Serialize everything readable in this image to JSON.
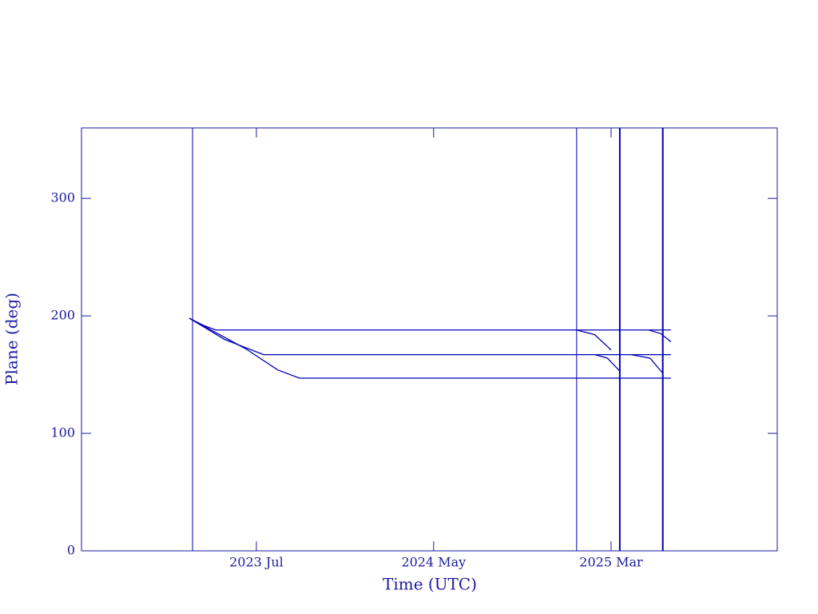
{
  "chart_data": {
    "type": "line",
    "xlabel": "Time (UTC)",
    "ylabel": "Plane (deg)",
    "xlim": [
      2022.678,
      2025.948
    ],
    "xticks": [
      {
        "value": 2023.5,
        "label": "2023 Jul"
      },
      {
        "value": 2024.333,
        "label": "2024 May"
      },
      {
        "value": 2025.167,
        "label": "2025 Mar"
      }
    ],
    "ylim": [
      0,
      360
    ],
    "yticks": [
      0,
      100,
      200,
      300
    ],
    "vlines": [
      2023.2,
      2025.005,
      2025.208,
      2025.41
    ],
    "color": "#0000b4",
    "series": [
      {
        "color": "#0000b4",
        "x": [
          2023.185,
          2023.25,
          2023.309,
          2025.448
        ],
        "values": [
          198,
          192,
          188,
          188
        ]
      },
      {
        "color": "#0000b4",
        "x": [
          2023.185,
          2023.35,
          2023.534,
          2025.448
        ],
        "values": [
          198,
          180,
          167,
          167
        ]
      },
      {
        "color": "#0000b4",
        "x": [
          2023.185,
          2023.45,
          2023.6,
          2023.703,
          2025.448
        ],
        "values": [
          198,
          172,
          154,
          147,
          147
        ]
      },
      {
        "color": "#0000b4",
        "x": [
          2025.005,
          2025.09,
          2025.167
        ],
        "values": [
          188,
          184,
          171
        ]
      },
      {
        "color": "#0000b4",
        "x": [
          2025.092,
          2025.15,
          2025.208
        ],
        "values": [
          167,
          164,
          153
        ]
      },
      {
        "color": "#0000b4",
        "x": [
          2025.261,
          2025.35,
          2025.411
        ],
        "values": [
          167,
          164,
          151
        ]
      },
      {
        "color": "#0000b4",
        "x": [
          2025.343,
          2025.4,
          2025.448
        ],
        "values": [
          188,
          185,
          178
        ]
      }
    ]
  }
}
